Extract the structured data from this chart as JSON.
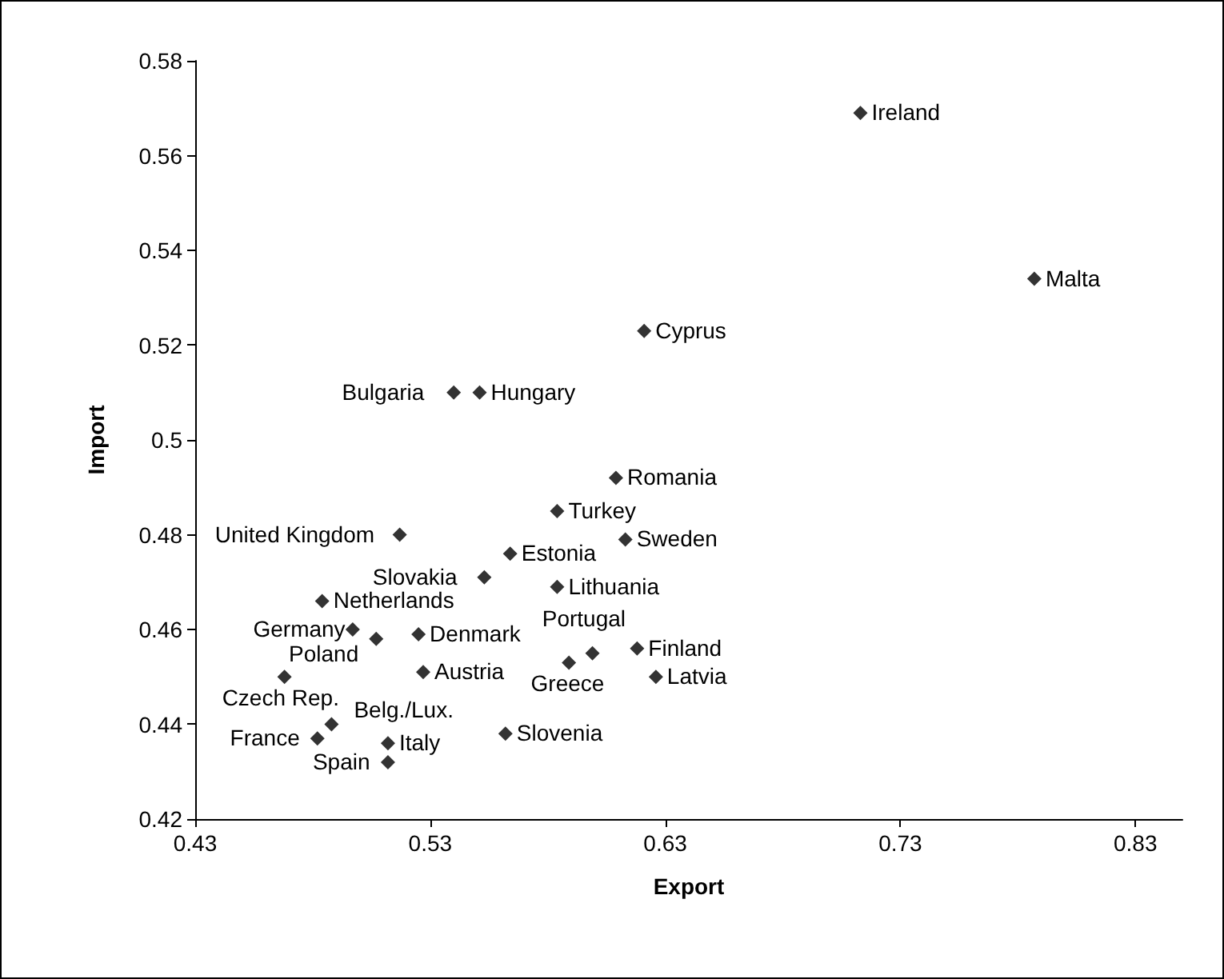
{
  "chart_data": {
    "type": "scatter",
    "xlabel": "Export",
    "ylabel": "Import",
    "x": [
      0.713,
      0.787,
      0.621,
      0.54,
      0.551,
      0.609,
      0.584,
      0.613,
      0.517,
      0.564,
      0.553,
      0.584,
      0.484,
      0.497,
      0.525,
      0.507,
      0.527,
      0.599,
      0.589,
      0.618,
      0.626,
      0.468,
      0.488,
      0.482,
      0.512,
      0.562,
      0.512
    ],
    "values": [
      0.569,
      0.534,
      0.523,
      0.51,
      0.51,
      0.492,
      0.485,
      0.479,
      0.48,
      0.476,
      0.471,
      0.469,
      0.466,
      0.46,
      0.459,
      0.458,
      0.451,
      0.455,
      0.453,
      0.456,
      0.45,
      0.45,
      0.44,
      0.437,
      0.436,
      0.438,
      0.432
    ],
    "color": "#000000",
    "marker": "diamond",
    "grid": false,
    "annotations": [
      {
        "text": "Ireland",
        "x": 0.713,
        "y": 0.569
      },
      {
        "text": "Malta",
        "x": 0.787,
        "y": 0.534
      },
      {
        "text": "Cyprus",
        "x": 0.621,
        "y": 0.523
      },
      {
        "text": "Bulgaria",
        "x": 0.54,
        "y": 0.51
      },
      {
        "text": "Hungary",
        "x": 0.551,
        "y": 0.51
      },
      {
        "text": "Romania",
        "x": 0.609,
        "y": 0.492
      },
      {
        "text": "Turkey",
        "x": 0.584,
        "y": 0.485
      },
      {
        "text": "Sweden",
        "x": 0.613,
        "y": 0.479
      },
      {
        "text": "United Kingdom",
        "x": 0.517,
        "y": 0.48
      },
      {
        "text": "Estonia",
        "x": 0.564,
        "y": 0.476
      },
      {
        "text": "Slovakia",
        "x": 0.553,
        "y": 0.471
      },
      {
        "text": "Lithuania",
        "x": 0.584,
        "y": 0.469
      },
      {
        "text": "Netherlands",
        "x": 0.484,
        "y": 0.466
      },
      {
        "text": "Germany",
        "x": 0.497,
        "y": 0.46
      },
      {
        "text": "Denmark",
        "x": 0.525,
        "y": 0.459
      },
      {
        "text": "Poland",
        "x": 0.507,
        "y": 0.458
      },
      {
        "text": "Austria",
        "x": 0.527,
        "y": 0.451
      },
      {
        "text": "Portugal",
        "x": 0.599,
        "y": 0.455
      },
      {
        "text": "Greece",
        "x": 0.589,
        "y": 0.453
      },
      {
        "text": "Finland",
        "x": 0.618,
        "y": 0.456
      },
      {
        "text": "Latvia",
        "x": 0.626,
        "y": 0.45
      },
      {
        "text": "Czech Rep.",
        "x": 0.468,
        "y": 0.45
      },
      {
        "text": "Belg./Lux.",
        "x": 0.488,
        "y": 0.44
      },
      {
        "text": "France",
        "x": 0.482,
        "y": 0.437
      },
      {
        "text": "Italy",
        "x": 0.512,
        "y": 0.436
      },
      {
        "text": "Slovenia",
        "x": 0.562,
        "y": 0.438
      },
      {
        "text": "Spain",
        "x": 0.512,
        "y": 0.432
      }
    ],
    "xlim": [
      0.43,
      0.85
    ],
    "xticks": [
      0.43,
      0.53,
      0.63,
      0.73,
      0.83
    ],
    "ylim": [
      0.42,
      0.58
    ],
    "yticks": [
      0.42,
      0.44,
      0.46,
      0.48,
      0.5,
      0.52,
      0.54,
      0.56,
      0.58
    ]
  }
}
